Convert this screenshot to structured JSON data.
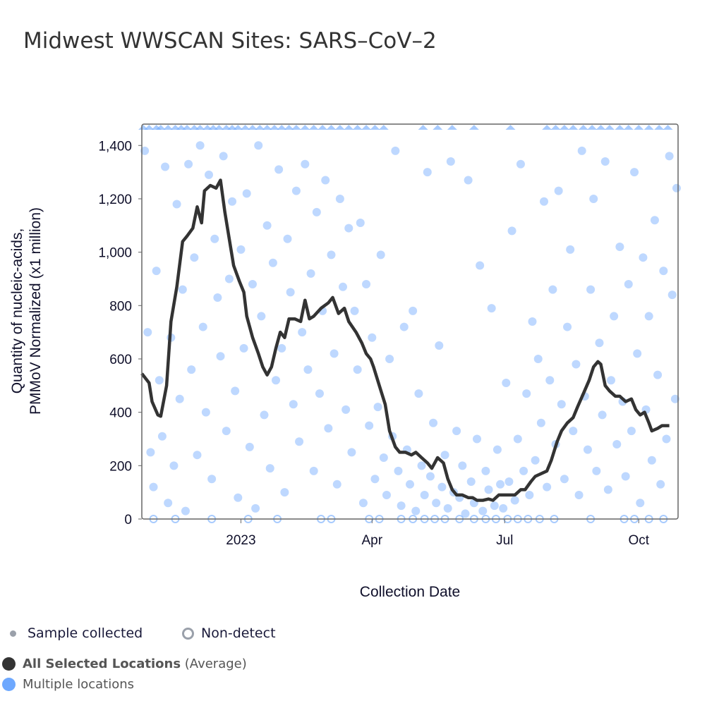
{
  "title": "Midwest WWSCAN Sites: SARS–CoV–2",
  "legend": {
    "sample": "Sample collected",
    "nondetect": "Non-detect",
    "avg_bold": "All Selected Locations",
    "avg_suffix": "(Average)",
    "multi": "Multiple locations"
  },
  "colors": {
    "average": "#333333",
    "points": "#6ea8fe",
    "axis": "#555555"
  },
  "chart_data": {
    "type": "scatter",
    "title": "Midwest WWSCAN Sites: SARS–CoV–2",
    "xlabel": "Collection Date",
    "ylabel": [
      "Quantity of nucleic-acids,",
      "PMMoV Normalized (x1 million)"
    ],
    "x_units": "days since 2023-01-01",
    "xlim": [
      -68,
      300
    ],
    "ylim": [
      0,
      1480
    ],
    "yticks": [
      {
        "v": 0,
        "label": "0"
      },
      {
        "v": 200,
        "label": "200"
      },
      {
        "v": 400,
        "label": "400"
      },
      {
        "v": 600,
        "label": "600"
      },
      {
        "v": 800,
        "label": "800"
      },
      {
        "v": 1000,
        "label": "1,000"
      },
      {
        "v": 1200,
        "label": "1,200"
      },
      {
        "v": 1400,
        "label": "1,400"
      }
    ],
    "xticks": [
      {
        "v": 0,
        "label": "2023"
      },
      {
        "v": 90,
        "label": "Apr"
      },
      {
        "v": 181,
        "label": "Jul"
      },
      {
        "v": 273,
        "label": "Oct"
      }
    ],
    "average": [
      [
        -68,
        545
      ],
      [
        -63,
        510
      ],
      [
        -61,
        440
      ],
      [
        -57,
        390
      ],
      [
        -55,
        385
      ],
      [
        -51,
        500
      ],
      [
        -48,
        740
      ],
      [
        -44,
        870
      ],
      [
        -40,
        1040
      ],
      [
        -37,
        1060
      ],
      [
        -33,
        1090
      ],
      [
        -30,
        1170
      ],
      [
        -27,
        1110
      ],
      [
        -25,
        1230
      ],
      [
        -21,
        1250
      ],
      [
        -17,
        1240
      ],
      [
        -14,
        1270
      ],
      [
        -11,
        1150
      ],
      [
        -8,
        1050
      ],
      [
        -5,
        950
      ],
      [
        -1,
        890
      ],
      [
        2,
        850
      ],
      [
        4,
        760
      ],
      [
        8,
        680
      ],
      [
        12,
        620
      ],
      [
        15,
        570
      ],
      [
        18,
        540
      ],
      [
        21,
        570
      ],
      [
        24,
        640
      ],
      [
        27,
        700
      ],
      [
        30,
        680
      ],
      [
        33,
        750
      ],
      [
        37,
        750
      ],
      [
        41,
        740
      ],
      [
        44,
        820
      ],
      [
        47,
        750
      ],
      [
        50,
        760
      ],
      [
        55,
        790
      ],
      [
        60,
        810
      ],
      [
        63,
        830
      ],
      [
        67,
        770
      ],
      [
        71,
        790
      ],
      [
        74,
        740
      ],
      [
        79,
        700
      ],
      [
        83,
        660
      ],
      [
        86,
        620
      ],
      [
        89,
        600
      ],
      [
        91,
        570
      ],
      [
        95,
        500
      ],
      [
        99,
        430
      ],
      [
        102,
        330
      ],
      [
        106,
        270
      ],
      [
        109,
        250
      ],
      [
        113,
        250
      ],
      [
        117,
        240
      ],
      [
        120,
        250
      ],
      [
        124,
        230
      ],
      [
        128,
        210
      ],
      [
        131,
        190
      ],
      [
        135,
        230
      ],
      [
        139,
        210
      ],
      [
        142,
        150
      ],
      [
        145,
        110
      ],
      [
        148,
        90
      ],
      [
        152,
        90
      ],
      [
        156,
        80
      ],
      [
        159,
        80
      ],
      [
        162,
        70
      ],
      [
        166,
        70
      ],
      [
        170,
        75
      ],
      [
        173,
        70
      ],
      [
        177,
        90
      ],
      [
        180,
        90
      ],
      [
        184,
        90
      ],
      [
        188,
        90
      ],
      [
        192,
        110
      ],
      [
        195,
        110
      ],
      [
        199,
        140
      ],
      [
        202,
        160
      ],
      [
        206,
        170
      ],
      [
        210,
        180
      ],
      [
        213,
        220
      ],
      [
        217,
        290
      ],
      [
        220,
        330
      ],
      [
        224,
        360
      ],
      [
        228,
        380
      ],
      [
        231,
        420
      ],
      [
        235,
        470
      ],
      [
        239,
        520
      ],
      [
        242,
        570
      ],
      [
        245,
        590
      ],
      [
        247,
        580
      ],
      [
        250,
        500
      ],
      [
        253,
        480
      ],
      [
        257,
        460
      ],
      [
        260,
        460
      ],
      [
        264,
        440
      ],
      [
        268,
        450
      ],
      [
        271,
        410
      ],
      [
        274,
        390
      ],
      [
        277,
        400
      ],
      [
        280,
        360
      ],
      [
        282,
        330
      ],
      [
        286,
        340
      ],
      [
        289,
        350
      ],
      [
        294,
        350
      ]
    ],
    "points": [
      [
        -66,
        1380
      ],
      [
        -64,
        700
      ],
      [
        -62,
        250
      ],
      [
        -60,
        120
      ],
      [
        -58,
        930
      ],
      [
        -56,
        520
      ],
      [
        -54,
        310
      ],
      [
        -52,
        1320
      ],
      [
        -50,
        60
      ],
      [
        -48,
        680
      ],
      [
        -46,
        200
      ],
      [
        -44,
        1180
      ],
      [
        -42,
        450
      ],
      [
        -40,
        860
      ],
      [
        -38,
        30
      ],
      [
        -36,
        1330
      ],
      [
        -34,
        560
      ],
      [
        -32,
        980
      ],
      [
        -30,
        240
      ],
      [
        -28,
        1400
      ],
      [
        -26,
        720
      ],
      [
        -24,
        400
      ],
      [
        -22,
        1290
      ],
      [
        -20,
        150
      ],
      [
        -18,
        1050
      ],
      [
        -16,
        830
      ],
      [
        -14,
        610
      ],
      [
        -12,
        1360
      ],
      [
        -10,
        330
      ],
      [
        -8,
        900
      ],
      [
        -6,
        1190
      ],
      [
        -4,
        480
      ],
      [
        -2,
        80
      ],
      [
        0,
        1010
      ],
      [
        2,
        640
      ],
      [
        4,
        1220
      ],
      [
        6,
        270
      ],
      [
        8,
        880
      ],
      [
        10,
        40
      ],
      [
        12,
        1400
      ],
      [
        14,
        760
      ],
      [
        16,
        390
      ],
      [
        18,
        1100
      ],
      [
        20,
        190
      ],
      [
        22,
        960
      ],
      [
        24,
        520
      ],
      [
        26,
        1310
      ],
      [
        28,
        640
      ],
      [
        30,
        100
      ],
      [
        32,
        1050
      ],
      [
        34,
        850
      ],
      [
        36,
        430
      ],
      [
        38,
        1230
      ],
      [
        40,
        290
      ],
      [
        42,
        700
      ],
      [
        44,
        1330
      ],
      [
        46,
        560
      ],
      [
        48,
        920
      ],
      [
        50,
        180
      ],
      [
        52,
        1150
      ],
      [
        54,
        470
      ],
      [
        56,
        780
      ],
      [
        58,
        1270
      ],
      [
        60,
        340
      ],
      [
        62,
        990
      ],
      [
        64,
        620
      ],
      [
        66,
        130
      ],
      [
        68,
        1200
      ],
      [
        70,
        870
      ],
      [
        72,
        410
      ],
      [
        74,
        1090
      ],
      [
        76,
        250
      ],
      [
        78,
        780
      ],
      [
        80,
        560
      ],
      [
        82,
        1110
      ],
      [
        84,
        60
      ],
      [
        86,
        880
      ],
      [
        88,
        350
      ],
      [
        90,
        680
      ],
      [
        92,
        150
      ],
      [
        94,
        420
      ],
      [
        96,
        990
      ],
      [
        98,
        230
      ],
      [
        100,
        90
      ],
      [
        102,
        600
      ],
      [
        104,
        310
      ],
      [
        106,
        1380
      ],
      [
        108,
        180
      ],
      [
        110,
        50
      ],
      [
        112,
        720
      ],
      [
        114,
        260
      ],
      [
        116,
        130
      ],
      [
        118,
        780
      ],
      [
        120,
        30
      ],
      [
        122,
        470
      ],
      [
        124,
        200
      ],
      [
        126,
        90
      ],
      [
        128,
        1300
      ],
      [
        130,
        160
      ],
      [
        132,
        360
      ],
      [
        134,
        60
      ],
      [
        136,
        650
      ],
      [
        138,
        120
      ],
      [
        140,
        240
      ],
      [
        142,
        40
      ],
      [
        144,
        1340
      ],
      [
        146,
        100
      ],
      [
        148,
        330
      ],
      [
        150,
        80
      ],
      [
        152,
        200
      ],
      [
        154,
        20
      ],
      [
        156,
        1270
      ],
      [
        158,
        140
      ],
      [
        160,
        60
      ],
      [
        162,
        300
      ],
      [
        164,
        950
      ],
      [
        166,
        30
      ],
      [
        168,
        180
      ],
      [
        170,
        110
      ],
      [
        172,
        790
      ],
      [
        174,
        50
      ],
      [
        176,
        260
      ],
      [
        178,
        130
      ],
      [
        180,
        40
      ],
      [
        182,
        510
      ],
      [
        184,
        140
      ],
      [
        186,
        1080
      ],
      [
        188,
        70
      ],
      [
        190,
        300
      ],
      [
        192,
        1330
      ],
      [
        194,
        180
      ],
      [
        196,
        470
      ],
      [
        198,
        90
      ],
      [
        200,
        740
      ],
      [
        202,
        220
      ],
      [
        204,
        600
      ],
      [
        206,
        360
      ],
      [
        208,
        1190
      ],
      [
        210,
        120
      ],
      [
        212,
        520
      ],
      [
        214,
        860
      ],
      [
        216,
        280
      ],
      [
        218,
        1230
      ],
      [
        220,
        430
      ],
      [
        222,
        150
      ],
      [
        224,
        720
      ],
      [
        226,
        1010
      ],
      [
        228,
        330
      ],
      [
        230,
        580
      ],
      [
        232,
        90
      ],
      [
        234,
        1380
      ],
      [
        236,
        460
      ],
      [
        238,
        260
      ],
      [
        240,
        860
      ],
      [
        242,
        1200
      ],
      [
        244,
        180
      ],
      [
        246,
        660
      ],
      [
        248,
        390
      ],
      [
        250,
        1340
      ],
      [
        252,
        110
      ],
      [
        254,
        520
      ],
      [
        256,
        760
      ],
      [
        258,
        280
      ],
      [
        260,
        1020
      ],
      [
        262,
        440
      ],
      [
        264,
        160
      ],
      [
        266,
        880
      ],
      [
        268,
        330
      ],
      [
        270,
        1300
      ],
      [
        272,
        620
      ],
      [
        274,
        60
      ],
      [
        276,
        980
      ],
      [
        278,
        410
      ],
      [
        280,
        760
      ],
      [
        282,
        220
      ],
      [
        284,
        1120
      ],
      [
        286,
        540
      ],
      [
        288,
        130
      ],
      [
        290,
        930
      ],
      [
        292,
        300
      ],
      [
        294,
        1360
      ],
      [
        296,
        840
      ],
      [
        298,
        450
      ],
      [
        299,
        1240
      ]
    ],
    "above_range": [
      -67,
      -63,
      -58,
      -55,
      -50,
      -45,
      -41,
      -37,
      -32,
      -28,
      -23,
      -19,
      -15,
      -10,
      -6,
      -2,
      3,
      8,
      13,
      18,
      23,
      28,
      33,
      38,
      44,
      50,
      56,
      62,
      68,
      74,
      80,
      86,
      92,
      98,
      125,
      135,
      145,
      160,
      185,
      210,
      216,
      222,
      228,
      235,
      241,
      247,
      253,
      260,
      266,
      273,
      280,
      287,
      293
    ],
    "nondetect": [
      -60,
      -45,
      -20,
      5,
      25,
      55,
      62,
      88,
      95,
      110,
      118,
      126,
      133,
      140,
      150,
      160,
      168,
      175,
      183,
      190,
      197,
      205,
      215,
      240,
      263,
      270,
      280,
      290
    ]
  }
}
